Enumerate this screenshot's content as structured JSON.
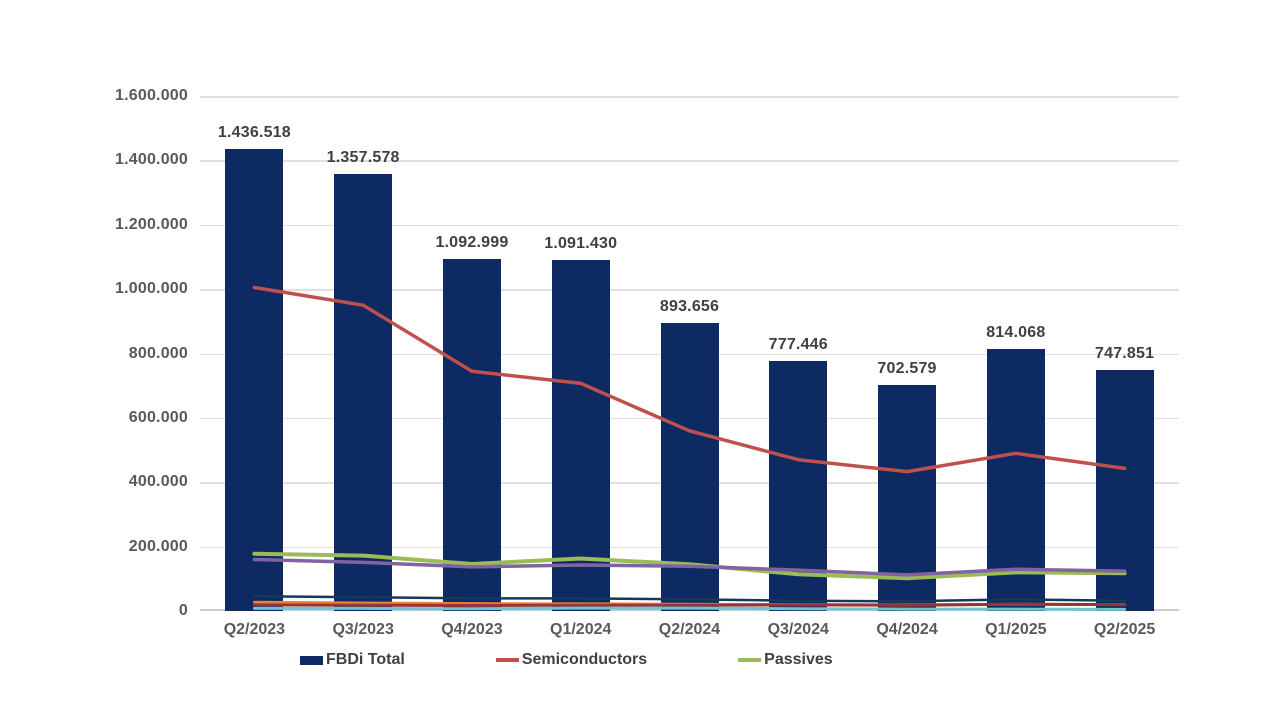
{
  "chart_data": {
    "type": "combo: bar + line",
    "title": "",
    "categories": [
      "Q2/2023",
      "Q3/2023",
      "Q4/2023",
      "Q1/2024",
      "Q2/2024",
      "Q3/2024",
      "Q4/2024",
      "Q1/2025",
      "Q2/2025"
    ],
    "y_axis": {
      "min": 0,
      "max": 1600000,
      "step": 200000,
      "tick_labels_top_down": [
        "1.600.000",
        "1.400.000",
        "1.200.000",
        "1.000.000",
        "800.000",
        "600.000",
        "400.000",
        "200.000",
        "0"
      ],
      "grid": true
    },
    "bar_series": {
      "name": "FBDi Total",
      "color": "#0e2a62",
      "values": [
        1436518,
        1357578,
        1092999,
        1091430,
        893656,
        777446,
        702579,
        814068,
        747851
      ],
      "value_labels": [
        "1.436.518",
        "1.357.578",
        "1.092.999",
        "1.091.430",
        "893.656",
        "777.446",
        "702.579",
        "814.068",
        "747.851"
      ]
    },
    "line_series": [
      {
        "name": "unlabeled (dark blue line)",
        "in_legend": false,
        "color": "#17375e",
        "stroke_width": 2.5,
        "values": [
          46000,
          43000,
          39000,
          39000,
          36000,
          32000,
          30000,
          36000,
          32000
        ]
      },
      {
        "name": "unlabeled (orange line)",
        "in_legend": false,
        "color": "#e8813b",
        "stroke_width": 3,
        "values": [
          27000,
          25000,
          23000,
          22000,
          21000,
          20000,
          19000,
          21000,
          20000
        ]
      },
      {
        "name": "unlabeled (dark red line)",
        "in_legend": false,
        "color": "#943634",
        "stroke_width": 3,
        "values": [
          19000,
          18000,
          17000,
          18000,
          18000,
          19000,
          18000,
          21000,
          20000
        ]
      },
      {
        "name": "unlabeled (light blue line)",
        "in_legend": false,
        "color": "#6fc3d4",
        "stroke_width": 3,
        "values": [
          8000,
          8000,
          7000,
          9000,
          9000,
          7000,
          6000,
          6000,
          5000
        ]
      },
      {
        "name": "Passives",
        "in_legend": true,
        "color": "#9bbb59",
        "stroke_width": 4,
        "values": [
          178000,
          172000,
          146000,
          163000,
          145000,
          114000,
          102000,
          120000,
          117000
        ]
      },
      {
        "name": "unlabeled (purple line)",
        "in_legend": false,
        "color": "#8064a2",
        "stroke_width": 3.5,
        "values": [
          160000,
          151000,
          137000,
          143000,
          139000,
          127000,
          112000,
          130000,
          124000
        ]
      },
      {
        "name": "Semiconductors",
        "in_legend": true,
        "color": "#c0504d",
        "stroke_width": 3.5,
        "values": [
          1005000,
          950000,
          745000,
          707000,
          560000,
          470000,
          433000,
          490000,
          443000
        ]
      }
    ],
    "legend_position": "bottom"
  },
  "legend": {
    "items": [
      {
        "label": "FBDi Total",
        "swatch": "bar",
        "color": "#0e2a62"
      },
      {
        "label": "Semiconductors",
        "swatch": "line",
        "color": "#c0504d"
      },
      {
        "label": "Passives",
        "swatch": "line",
        "color": "#9bbb59"
      }
    ]
  },
  "styles": {
    "gridline_color": "#e0e0e0",
    "axis_line_color": "#cdcdcd",
    "tick_text_color": "#595959",
    "bar_label_color": "#404040",
    "background": "#ffffff"
  }
}
